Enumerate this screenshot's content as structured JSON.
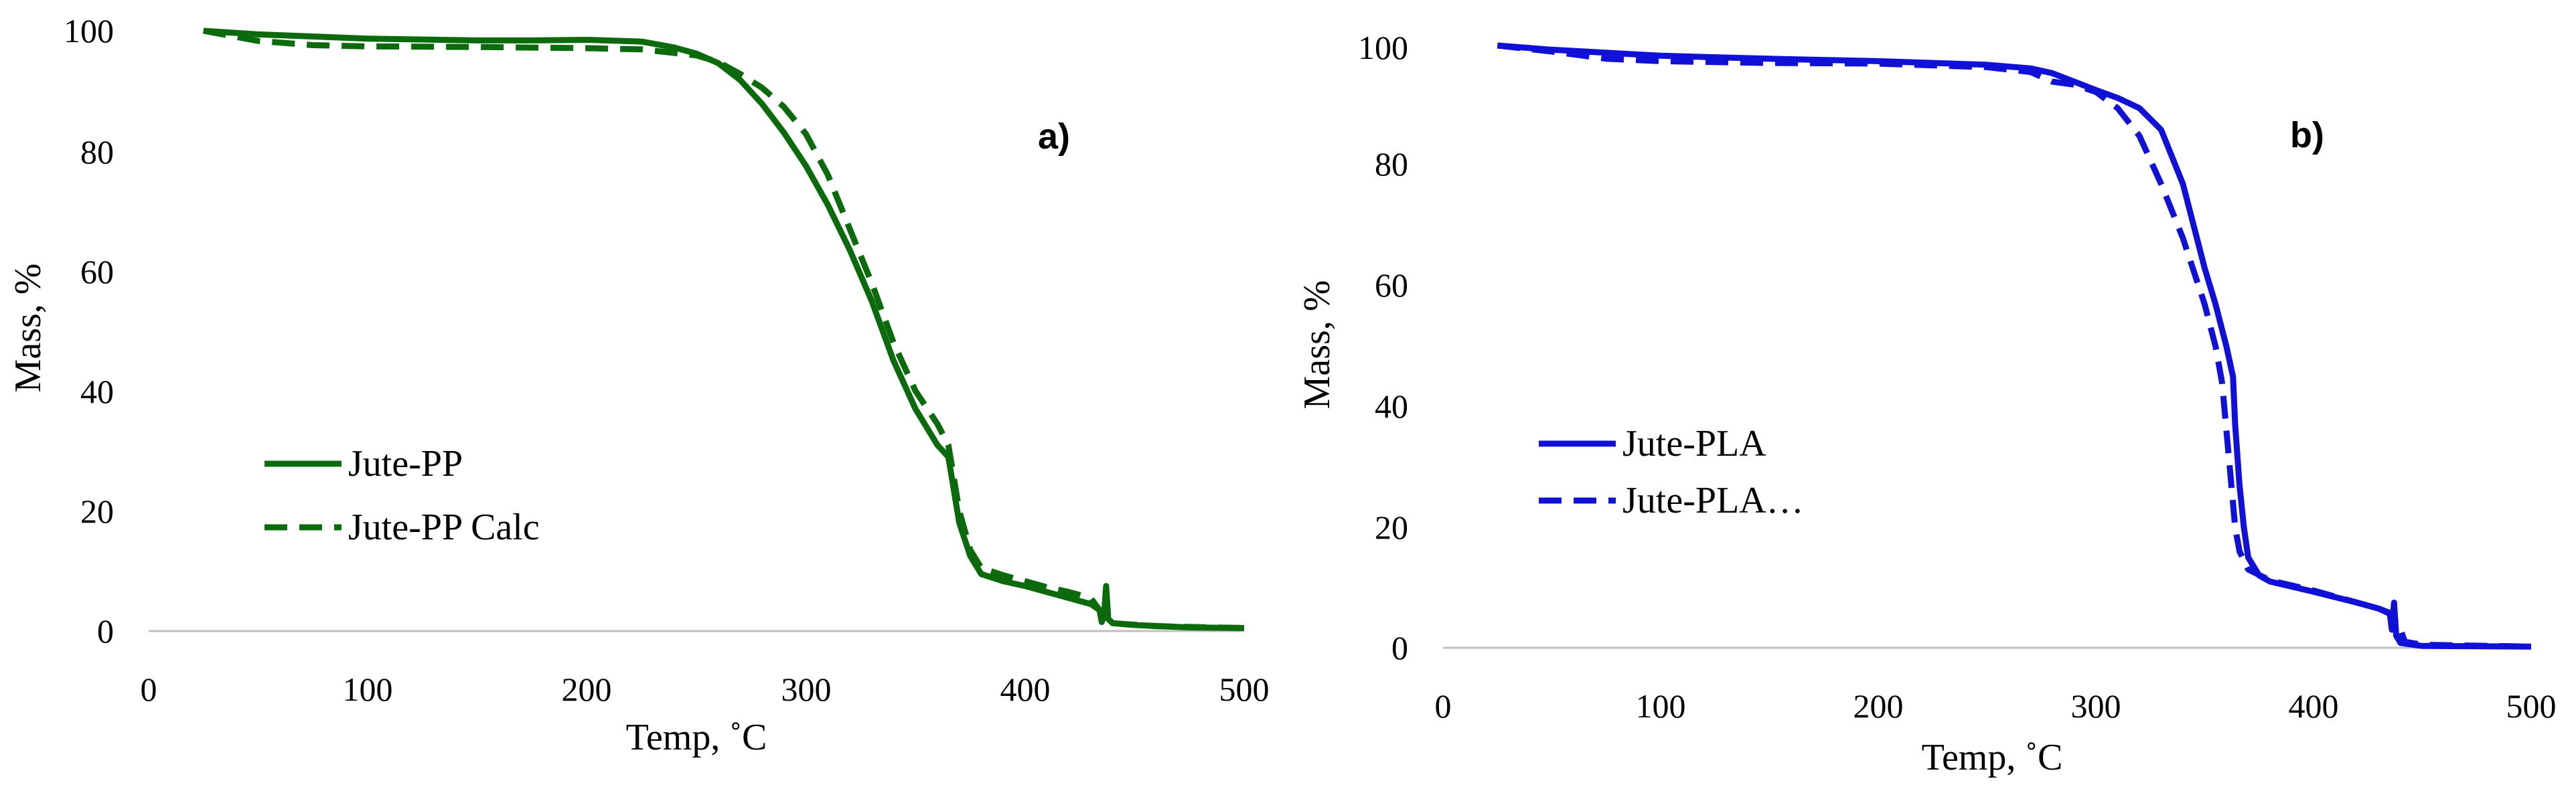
{
  "chart_data": [
    {
      "type": "line",
      "panel_label": "a)",
      "xlabel": "Temp, ˚C",
      "ylabel": "Mass, %",
      "xlim": [
        0,
        500
      ],
      "ylim": [
        0,
        100
      ],
      "xticks": [
        "0",
        "100",
        "200",
        "300",
        "400",
        "500"
      ],
      "yticks": [
        "0",
        "20",
        "40",
        "60",
        "80",
        "100"
      ],
      "legend_position": "left",
      "grid": false,
      "series": [
        {
          "name": "Jute-PP",
          "color": "#0b6a0b",
          "style": "solid",
          "points": [
            [
              25,
              100
            ],
            [
              50,
              99.4
            ],
            [
              100,
              98.7
            ],
            [
              150,
              98.4
            ],
            [
              175,
              98.4
            ],
            [
              200,
              98.5
            ],
            [
              225,
              98.2
            ],
            [
              240,
              97.2
            ],
            [
              250,
              96.2
            ],
            [
              260,
              94.6
            ],
            [
              270,
              91.8
            ],
            [
              280,
              87.8
            ],
            [
              290,
              83
            ],
            [
              300,
              77.5
            ],
            [
              310,
              71
            ],
            [
              320,
              63.5
            ],
            [
              330,
              55
            ],
            [
              340,
              45
            ],
            [
              350,
              37
            ],
            [
              360,
              31
            ],
            [
              365,
              29
            ],
            [
              370,
              18
            ],
            [
              375,
              12.5
            ],
            [
              380,
              9.5
            ],
            [
              390,
              8.3
            ],
            [
              400,
              7.5
            ],
            [
              410,
              6.5
            ],
            [
              420,
              5.5
            ],
            [
              430,
              4.5
            ],
            [
              434,
              3.5
            ],
            [
              435,
              1.5
            ],
            [
              436,
              2.5
            ],
            [
              437,
              7.5
            ],
            [
              438,
              2
            ],
            [
              440,
              1.3
            ],
            [
              450,
              1
            ],
            [
              475,
              0.6
            ],
            [
              500,
              0.5
            ]
          ]
        },
        {
          "name": "Jute-PP Calc",
          "color": "#0b6a0b",
          "style": "dashed",
          "points": [
            [
              25,
              100
            ],
            [
              50,
              98.3
            ],
            [
              75,
              97.6
            ],
            [
              100,
              97.4
            ],
            [
              150,
              97.3
            ],
            [
              200,
              97.1
            ],
            [
              225,
              96.9
            ],
            [
              240,
              96.3
            ],
            [
              250,
              95.9
            ],
            [
              260,
              94.8
            ],
            [
              270,
              92.8
            ],
            [
              280,
              90.5
            ],
            [
              290,
              87.3
            ],
            [
              300,
              82.8
            ],
            [
              310,
              76
            ],
            [
              320,
              67
            ],
            [
              330,
              58
            ],
            [
              340,
              48
            ],
            [
              350,
              40
            ],
            [
              360,
              34.5
            ],
            [
              365,
              31
            ],
            [
              370,
              20
            ],
            [
              375,
              13.5
            ],
            [
              380,
              10.5
            ],
            [
              390,
              9.3
            ],
            [
              400,
              8.3
            ],
            [
              410,
              7.3
            ],
            [
              420,
              6.5
            ],
            [
              430,
              5.5
            ],
            [
              434,
              3.5
            ],
            [
              436,
              2
            ],
            [
              440,
              1.3
            ],
            [
              460,
              0.8
            ],
            [
              500,
              0.5
            ]
          ]
        }
      ]
    },
    {
      "type": "line",
      "panel_label": "b)",
      "xlabel": "Temp, ˚C",
      "ylabel": "Mass, %",
      "xlim": [
        0,
        500
      ],
      "ylim": [
        0,
        100
      ],
      "xticks": [
        "0",
        "100",
        "200",
        "300",
        "400",
        "500"
      ],
      "yticks": [
        "0",
        "20",
        "40",
        "60",
        "80",
        "100"
      ],
      "legend_position": "left",
      "grid": false,
      "series": [
        {
          "name": "Jute-PLA",
          "color": "#1010d6",
          "style": "solid",
          "points": [
            [
              25,
              100
            ],
            [
              50,
              99.3
            ],
            [
              100,
              98.3
            ],
            [
              150,
              97.8
            ],
            [
              200,
              97.4
            ],
            [
              250,
              96.8
            ],
            [
              270,
              96.2
            ],
            [
              280,
              95.4
            ],
            [
              290,
              94
            ],
            [
              300,
              92.6
            ],
            [
              310,
              91.3
            ],
            [
              320,
              89.6
            ],
            [
              330,
              86
            ],
            [
              340,
              77
            ],
            [
              350,
              63
            ],
            [
              355,
              57
            ],
            [
              360,
              50
            ],
            [
              363,
              45
            ],
            [
              364,
              37
            ],
            [
              366,
              27
            ],
            [
              368,
              20
            ],
            [
              370,
              15
            ],
            [
              375,
              12
            ],
            [
              380,
              11
            ],
            [
              400,
              9.3
            ],
            [
              420,
              7.5
            ],
            [
              430,
              6.5
            ],
            [
              435,
              5.8
            ],
            [
              436,
              3
            ],
            [
              437,
              7.5
            ],
            [
              438,
              2
            ],
            [
              440,
              0.8
            ],
            [
              450,
              0.3
            ],
            [
              500,
              0.2
            ]
          ]
        },
        {
          "name": "Jute-PLA…",
          "color": "#1010d6",
          "style": "dashed",
          "points": [
            [
              25,
              100
            ],
            [
              50,
              99
            ],
            [
              75,
              97.8
            ],
            [
              100,
              97.4
            ],
            [
              150,
              97.1
            ],
            [
              200,
              97
            ],
            [
              250,
              96.4
            ],
            [
              270,
              95.6
            ],
            [
              280,
              94
            ],
            [
              290,
              93.5
            ],
            [
              300,
              92.3
            ],
            [
              310,
              89.6
            ],
            [
              320,
              85
            ],
            [
              330,
              77
            ],
            [
              340,
              68
            ],
            [
              350,
              57
            ],
            [
              355,
              50
            ],
            [
              358,
              44
            ],
            [
              360,
              36
            ],
            [
              362,
              28
            ],
            [
              364,
              20
            ],
            [
              366,
              16
            ],
            [
              370,
              13
            ],
            [
              380,
              11.2
            ],
            [
              400,
              9.5
            ],
            [
              420,
              7.5
            ],
            [
              430,
              6.5
            ],
            [
              436,
              5.5
            ],
            [
              440,
              3
            ],
            [
              442,
              1
            ],
            [
              450,
              0.5
            ],
            [
              500,
              0.2
            ]
          ]
        }
      ]
    }
  ]
}
